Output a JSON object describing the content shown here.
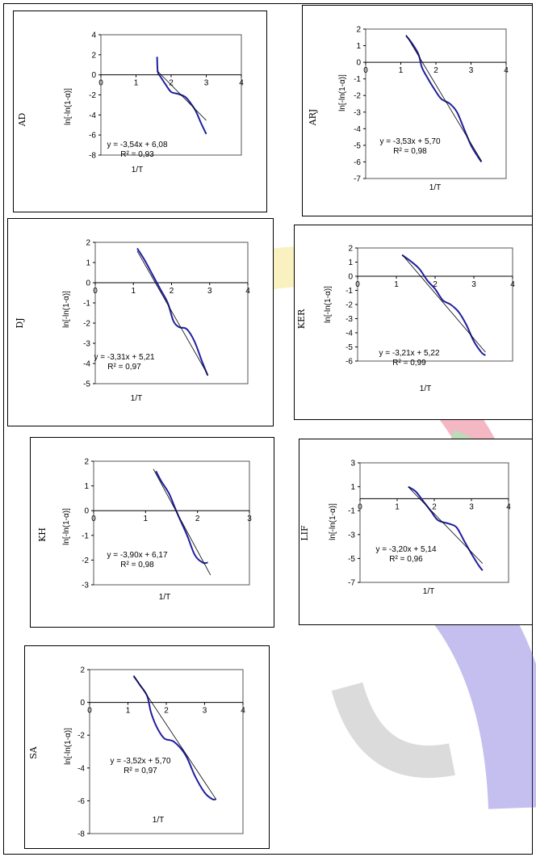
{
  "colors": {
    "curve": "#1f1f9f",
    "trend": "#000000",
    "axis": "#000000",
    "plot_border": "#555555",
    "watermark_yellow": "#f2d84a",
    "watermark_red": "#e0355a",
    "watermark_blue": "#5a4bd1",
    "watermark_green": "#3f9a3a"
  },
  "chart_data": [
    {
      "id": "AD",
      "type": "line",
      "side_label": "AD",
      "xlabel": "1/T",
      "ylabel": "ln[-ln(1-α)]",
      "equation": "y = -3,54x + 6,08",
      "r2": "R² = 0,93",
      "xlim": [
        0,
        4
      ],
      "ylim": [
        -8,
        4
      ],
      "xticks": [
        0,
        1,
        2,
        3,
        4
      ],
      "yticks": [
        4,
        2,
        0,
        -2,
        -4,
        -6,
        -8
      ],
      "series": [
        {
          "kind": "curve",
          "x": [
            1.6,
            1.62,
            1.7,
            1.85,
            2.0,
            2.2,
            2.4,
            2.55,
            2.7,
            2.85,
            3.0
          ],
          "y": [
            1.8,
            0.3,
            -0.2,
            -1.0,
            -1.7,
            -1.9,
            -2.2,
            -2.8,
            -3.6,
            -4.8,
            -5.9
          ]
        },
        {
          "kind": "trend",
          "slope": -3.54,
          "intercept": 6.08,
          "x_range": [
            1.6,
            3.0
          ]
        }
      ]
    },
    {
      "id": "ARJ",
      "type": "line",
      "side_label": "ARJ",
      "xlabel": "1/T",
      "ylabel": "ln[-ln(1-α)]",
      "equation": "y = -3,53x + 5,70",
      "r2": "R² = 0,98",
      "xlim": [
        0,
        4
      ],
      "ylim": [
        -7,
        2
      ],
      "xticks": [
        0,
        1,
        2,
        3,
        4
      ],
      "yticks": [
        2,
        1,
        0,
        -1,
        -2,
        -3,
        -4,
        -5,
        -6,
        -7
      ],
      "series": [
        {
          "kind": "curve",
          "x": [
            1.15,
            1.3,
            1.5,
            1.6,
            1.75,
            1.95,
            2.15,
            2.4,
            2.6,
            2.8,
            3.0,
            3.2,
            3.3
          ],
          "y": [
            1.6,
            1.2,
            0.5,
            -0.3,
            -0.9,
            -1.6,
            -2.2,
            -2.5,
            -3.0,
            -4.0,
            -5.0,
            -5.7,
            -6.0
          ]
        },
        {
          "kind": "trend",
          "slope": -3.53,
          "intercept": 5.7,
          "x_range": [
            1.15,
            3.3
          ]
        }
      ]
    },
    {
      "id": "DJ",
      "type": "line",
      "side_label": "DJ",
      "xlabel": "1/T",
      "ylabel": "ln[-ln(1-α)]",
      "equation": "y = -3,31x + 5,21",
      "r2": "R² = 0,97",
      "xlim": [
        0,
        4
      ],
      "ylim": [
        -5,
        2
      ],
      "xticks": [
        0,
        1,
        2,
        3,
        4
      ],
      "yticks": [
        2,
        1,
        0,
        -1,
        -2,
        -3,
        -4,
        -5
      ],
      "series": [
        {
          "kind": "curve",
          "x": [
            1.1,
            1.3,
            1.5,
            1.7,
            1.9,
            2.05,
            2.2,
            2.4,
            2.6,
            2.8,
            2.95
          ],
          "y": [
            1.7,
            1.1,
            0.4,
            -0.3,
            -1.0,
            -1.9,
            -2.2,
            -2.3,
            -2.9,
            -3.9,
            -4.6
          ]
        },
        {
          "kind": "trend",
          "slope": -3.31,
          "intercept": 5.21,
          "x_range": [
            1.1,
            2.95
          ]
        }
      ]
    },
    {
      "id": "KER",
      "type": "line",
      "side_label": "KER",
      "xlabel": "1/T",
      "ylabel": "ln[-ln(1-α)]",
      "equation": "y = -3,21x + 5,22",
      "r2": "R² = 0,99",
      "xlim": [
        0,
        4
      ],
      "ylim": [
        -6,
        2
      ],
      "xticks": [
        0,
        1,
        2,
        3,
        4
      ],
      "yticks": [
        2,
        1,
        0,
        -1,
        -2,
        -3,
        -4,
        -5,
        -6
      ],
      "series": [
        {
          "kind": "curve",
          "x": [
            1.15,
            1.4,
            1.6,
            1.8,
            2.0,
            2.2,
            2.4,
            2.6,
            2.8,
            3.0,
            3.2,
            3.3
          ],
          "y": [
            1.5,
            1.0,
            0.5,
            -0.3,
            -0.9,
            -1.7,
            -2.0,
            -2.5,
            -3.4,
            -4.6,
            -5.4,
            -5.6
          ]
        },
        {
          "kind": "trend",
          "slope": -3.21,
          "intercept": 5.22,
          "x_range": [
            1.15,
            3.3
          ]
        }
      ]
    },
    {
      "id": "KH",
      "type": "line",
      "side_label": "KH",
      "xlabel": "1/T",
      "ylabel": "ln[-ln(1-α)]",
      "equation": "y = -3,90x + 6,17",
      "r2": "R² = 0,98",
      "xlim": [
        0,
        3
      ],
      "ylim": [
        -3,
        2
      ],
      "xticks": [
        0,
        1,
        2,
        3
      ],
      "yticks": [
        2,
        1,
        0,
        -1,
        -2,
        -3
      ],
      "series": [
        {
          "kind": "curve",
          "x": [
            1.2,
            1.3,
            1.45,
            1.55,
            1.65,
            1.8,
            1.95,
            2.1,
            2.2
          ],
          "y": [
            1.6,
            1.2,
            0.7,
            0.2,
            -0.3,
            -1.0,
            -1.8,
            -2.1,
            -2.1
          ]
        },
        {
          "kind": "trend",
          "slope": -3.9,
          "intercept": 6.17,
          "x_range": [
            1.15,
            2.25
          ]
        }
      ]
    },
    {
      "id": "LIF",
      "type": "line",
      "side_label": "LIF",
      "xlabel": "1/T",
      "ylabel": "ln[-ln(1-α)]",
      "equation": "y = -3,20x + 5,14",
      "r2": "R² = 0,96",
      "xlim": [
        0,
        4
      ],
      "ylim": [
        -7,
        3
      ],
      "xticks": [
        0,
        1,
        2,
        3,
        4
      ],
      "yticks": [
        3,
        1,
        -1,
        -3,
        -5,
        -7
      ],
      "series": [
        {
          "kind": "curve",
          "x": [
            1.3,
            1.5,
            1.7,
            1.9,
            2.1,
            2.4,
            2.6,
            2.8,
            3.0,
            3.2,
            3.3
          ],
          "y": [
            1.0,
            0.6,
            -0.2,
            -1.0,
            -1.8,
            -2.1,
            -2.4,
            -3.5,
            -4.6,
            -5.6,
            -6.0
          ]
        },
        {
          "kind": "trend",
          "slope": -3.2,
          "intercept": 5.14,
          "x_range": [
            1.3,
            3.3
          ]
        }
      ]
    },
    {
      "id": "SA",
      "type": "line",
      "side_label": "SA",
      "xlabel": "1/T",
      "ylabel": "ln[-ln(1-α)]",
      "equation": "y = -3,52x + 5,70",
      "r2": "R² = 0,97",
      "xlim": [
        0,
        4
      ],
      "ylim": [
        -8,
        2
      ],
      "xticks": [
        0,
        1,
        2,
        3,
        4
      ],
      "yticks": [
        2,
        0,
        -2,
        -4,
        -6,
        -8
      ],
      "series": [
        {
          "kind": "curve",
          "x": [
            1.15,
            1.3,
            1.5,
            1.6,
            1.75,
            1.95,
            2.2,
            2.5,
            2.75,
            3.0,
            3.2,
            3.3
          ],
          "y": [
            1.6,
            1.1,
            0.4,
            -0.6,
            -1.5,
            -2.2,
            -2.4,
            -3.2,
            -4.5,
            -5.5,
            -5.9,
            -5.9
          ]
        },
        {
          "kind": "trend",
          "slope": -3.52,
          "intercept": 5.7,
          "x_range": [
            1.15,
            3.3
          ]
        }
      ]
    }
  ]
}
